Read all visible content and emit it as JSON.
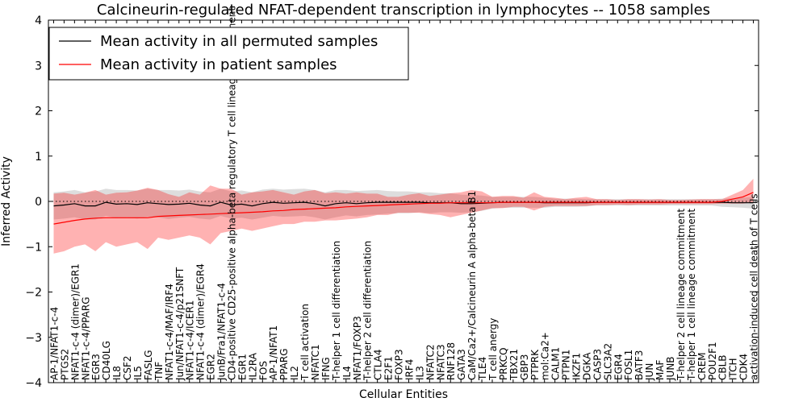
{
  "chart_data": {
    "type": "line",
    "title": "Calcineurin-regulated NFAT-dependent transcription in lymphocytes -- 1058 samples",
    "xlabel": "Cellular Entities",
    "ylabel": "Inferred Activity",
    "ylim": [
      -4,
      4
    ],
    "yticks": [
      "−4",
      "−3",
      "−2",
      "−1",
      "0",
      "1",
      "2",
      "3",
      "4"
    ],
    "grid": false,
    "legend_position": "top-left",
    "categories": [
      "AP-1/NFAT1-c-4",
      "PTGS2",
      "NFAT1-c-4 (dimer)/EGR1",
      "NFAT1-c-4/PPARG",
      "EGR3",
      "CD40LG",
      "IL8",
      "CSF2",
      "IL5",
      "FASLG",
      "TNF",
      "NFAT1-c-4/MAF/IRF4",
      "Jun/NFAT1-c-4/p21SNFT",
      "NFAT1-c-4/ICER1",
      "NFAT1-c-4 (dimer)/EGR4",
      "EGR2",
      "JunB/Fra1/NFAT1-c-4",
      "CD4-positive CD25-positive alpha-beta regulatory T cell lineage commitment",
      "EGR1",
      "IL2RA",
      "FOS",
      "AP-1/NFAT1",
      "PPARG",
      "IL2",
      "T cell activation",
      "NFATC1",
      "IFNG",
      "T-helper 1 cell differentiation",
      "IL4",
      "NFAT1/FOXP3",
      "T-helper 2 cell differentiation",
      "CTLA4",
      "E2F1",
      "FOXP3",
      "IRF4",
      "IL3",
      "NFATC2",
      "NFATC3",
      "RNF128",
      "GATA3",
      "CaM/Ca2+/Calcineurin A alpha-beta B1",
      "TLE4",
      "T cell anergy",
      "PRKCQ",
      "TBX21",
      "GBP3",
      "PTPRK",
      "mol:Ca2+",
      "CALM1",
      "PTPN1",
      "IKZF1",
      "DGKA",
      "CASP3",
      "SLC3A2",
      "EGR4",
      "FOSL1",
      "BATF3",
      "JUN",
      "MAF",
      "JUNB",
      "T-helper 2 cell lineage commitment",
      "T-helper 1 cell lineage commitment",
      "CREM",
      "POU2F1",
      "CBLB",
      "ITCH",
      "CDK4",
      "activation-induced cell death of T cells"
    ],
    "series": [
      {
        "name": "Mean activity in all permuted samples",
        "color": "#000000",
        "band_color": "#aaaaaa",
        "values": [
          -0.1,
          -0.08,
          -0.05,
          -0.1,
          -0.1,
          -0.02,
          -0.06,
          -0.05,
          -0.07,
          -0.03,
          -0.05,
          -0.07,
          -0.06,
          -0.04,
          -0.08,
          -0.1,
          -0.02,
          -0.08,
          -0.06,
          -0.1,
          -0.05,
          -0.02,
          -0.04,
          -0.03,
          -0.02,
          -0.05,
          -0.1,
          -0.05,
          -0.03,
          -0.05,
          -0.03,
          -0.02,
          -0.02,
          -0.02,
          -0.02,
          -0.02,
          -0.03,
          -0.03,
          -0.03,
          -0.05,
          -0.05,
          -0.04,
          -0.03,
          -0.02,
          -0.02,
          -0.02,
          -0.02,
          -0.03,
          -0.03,
          -0.03,
          -0.03,
          -0.03,
          -0.02,
          -0.02,
          -0.02,
          -0.02,
          -0.02,
          -0.02,
          -0.02,
          -0.02,
          -0.02,
          -0.02,
          -0.02,
          -0.02,
          -0.02,
          -0.03,
          -0.03,
          -0.03
        ],
        "upper": [
          0.2,
          0.22,
          0.25,
          0.2,
          0.22,
          0.28,
          0.25,
          0.25,
          0.24,
          0.28,
          0.25,
          0.25,
          0.24,
          0.26,
          0.22,
          0.2,
          0.28,
          0.22,
          0.24,
          0.2,
          0.26,
          0.28,
          0.26,
          0.27,
          0.28,
          0.25,
          0.2,
          0.25,
          0.25,
          0.23,
          0.24,
          0.25,
          0.23,
          0.22,
          0.22,
          0.2,
          0.2,
          0.18,
          0.18,
          0.15,
          0.14,
          0.13,
          0.1,
          0.1,
          0.1,
          0.1,
          0.1,
          0.08,
          0.06,
          0.06,
          0.06,
          0.05,
          0.05,
          0.05,
          0.05,
          0.05,
          0.05,
          0.05,
          0.05,
          0.05,
          0.05,
          0.05,
          0.05,
          0.05,
          0.06,
          0.07,
          0.08,
          0.1
        ],
        "lower": [
          -0.4,
          -0.38,
          -0.35,
          -0.4,
          -0.4,
          -0.32,
          -0.37,
          -0.35,
          -0.38,
          -0.34,
          -0.35,
          -0.39,
          -0.36,
          -0.34,
          -0.38,
          -0.4,
          -0.32,
          -0.38,
          -0.36,
          -0.4,
          -0.36,
          -0.32,
          -0.34,
          -0.33,
          -0.32,
          -0.35,
          -0.4,
          -0.35,
          -0.31,
          -0.33,
          -0.3,
          -0.29,
          -0.27,
          -0.26,
          -0.26,
          -0.24,
          -0.26,
          -0.24,
          -0.24,
          -0.25,
          -0.24,
          -0.21,
          -0.16,
          -0.14,
          -0.14,
          -0.14,
          -0.14,
          -0.14,
          -0.12,
          -0.12,
          -0.12,
          -0.11,
          -0.09,
          -0.09,
          -0.09,
          -0.09,
          -0.09,
          -0.09,
          -0.09,
          -0.09,
          -0.09,
          -0.09,
          -0.09,
          -0.09,
          -0.12,
          -0.13,
          -0.14,
          -0.16
        ]
      },
      {
        "name": "Mean activity in patient samples",
        "color": "#ff0000",
        "band_color": "#ff0000",
        "values": [
          -0.5,
          -0.46,
          -0.42,
          -0.39,
          -0.37,
          -0.36,
          -0.36,
          -0.36,
          -0.36,
          -0.36,
          -0.33,
          -0.32,
          -0.31,
          -0.3,
          -0.29,
          -0.28,
          -0.27,
          -0.26,
          -0.25,
          -0.24,
          -0.23,
          -0.21,
          -0.2,
          -0.18,
          -0.17,
          -0.16,
          -0.15,
          -0.14,
          -0.12,
          -0.11,
          -0.1,
          -0.09,
          -0.08,
          -0.07,
          -0.06,
          -0.05,
          -0.04,
          -0.04,
          -0.03,
          -0.03,
          -0.03,
          -0.03,
          -0.03,
          -0.02,
          -0.02,
          -0.02,
          -0.02,
          -0.02,
          -0.02,
          -0.02,
          -0.02,
          -0.02,
          -0.02,
          -0.02,
          -0.02,
          -0.02,
          -0.02,
          -0.02,
          -0.02,
          -0.02,
          -0.02,
          -0.02,
          -0.02,
          -0.02,
          0.0,
          0.05,
          0.1,
          0.2
        ],
        "upper": [
          0.17,
          0.19,
          0.15,
          0.19,
          0.25,
          0.15,
          0.19,
          0.2,
          0.24,
          0.3,
          0.25,
          0.16,
          0.1,
          0.2,
          0.15,
          0.35,
          0.28,
          0.28,
          0.15,
          0.2,
          0.22,
          0.25,
          0.2,
          0.15,
          0.22,
          0.25,
          0.18,
          0.2,
          0.17,
          0.2,
          0.17,
          0.17,
          0.1,
          0.1,
          0.15,
          0.18,
          0.12,
          0.15,
          0.18,
          0.2,
          0.25,
          0.22,
          0.1,
          0.12,
          0.12,
          0.08,
          0.2,
          0.1,
          0.08,
          0.05,
          0.08,
          0.1,
          0.05,
          0.05,
          0.03,
          0.05,
          0.05,
          0.04,
          0.05,
          0.03,
          0.03,
          0.04,
          0.05,
          0.05,
          0.05,
          0.15,
          0.25,
          0.5
        ],
        "lower": [
          -1.15,
          -1.1,
          -1.0,
          -0.95,
          -1.1,
          -0.9,
          -1.0,
          -0.95,
          -0.9,
          -1.05,
          -0.8,
          -0.85,
          -0.8,
          -0.75,
          -0.8,
          -0.95,
          -0.7,
          -0.65,
          -0.6,
          -0.65,
          -0.6,
          -0.55,
          -0.5,
          -0.5,
          -0.45,
          -0.45,
          -0.42,
          -0.42,
          -0.4,
          -0.38,
          -0.35,
          -0.3,
          -0.3,
          -0.25,
          -0.25,
          -0.25,
          -0.28,
          -0.3,
          -0.35,
          -0.3,
          -0.25,
          -0.2,
          -0.15,
          -0.15,
          -0.12,
          -0.12,
          -0.2,
          -0.12,
          -0.1,
          -0.1,
          -0.1,
          -0.1,
          -0.08,
          -0.08,
          -0.07,
          -0.08,
          -0.07,
          -0.07,
          -0.07,
          -0.06,
          -0.06,
          -0.06,
          -0.06,
          -0.06,
          -0.05,
          -0.05,
          -0.05,
          -0.02
        ]
      }
    ]
  }
}
